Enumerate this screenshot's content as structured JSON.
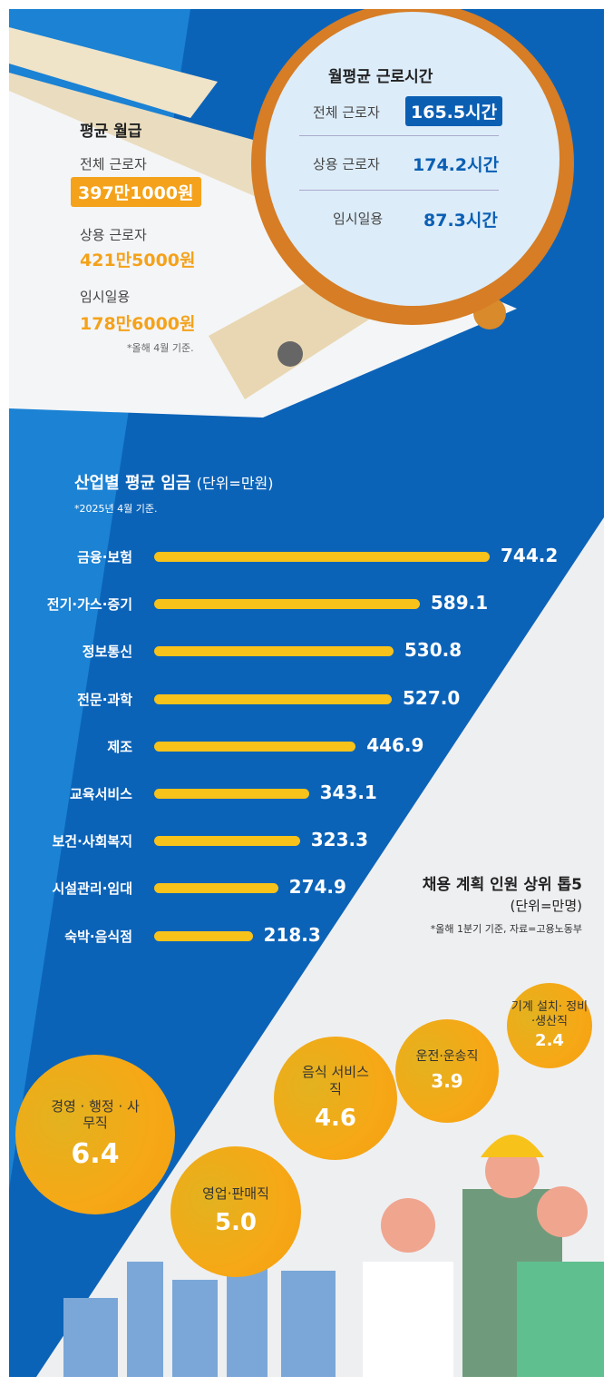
{
  "salary": {
    "title": "평균 월급",
    "items": [
      {
        "label": "전체 근로자",
        "value": "397만1000원"
      },
      {
        "label": "상용 근로자",
        "value": "421만5000원"
      },
      {
        "label": "임시일용",
        "value": "178만6000원"
      }
    ],
    "note": "*올해 4월 기준."
  },
  "hours": {
    "title": "월평균 근로시간",
    "items": [
      {
        "label": "전체 근로자",
        "value": "165.5시간"
      },
      {
        "label": "상용 근로자",
        "value": "174.2시간"
      },
      {
        "label": "임시일용",
        "value": "87.3시간"
      }
    ]
  },
  "chart_data": {
    "type": "bar",
    "orientation": "horizontal",
    "title": "산업별 평균 임금",
    "unit": "(단위=만원)",
    "note": "*2025년 4월 기준.",
    "categories": [
      "금융·보험",
      "전기·가스·증기",
      "정보통신",
      "전문·과학",
      "제조",
      "교육서비스",
      "보건·사회복지",
      "시설관리·임대",
      "숙박·음식점"
    ],
    "values": [
      744.2,
      589.1,
      530.8,
      527.0,
      446.9,
      343.1,
      323.3,
      274.9,
      218.3
    ],
    "value_labels": [
      "744.2",
      "589.1",
      "530.8",
      "527.0",
      "446.9",
      "343.1",
      "323.3",
      "274.9",
      "218.3"
    ],
    "xlim": [
      0,
      744.2
    ],
    "color": "#f7c21a"
  },
  "hiring": {
    "title": "채용 계획 인원 상위 톱5",
    "unit": "(단위=만명)",
    "note": "*올해 1분기 기준, 자료=고용노동부",
    "items": [
      {
        "label": "경영 · 행정 · 사무직",
        "value": "6.4"
      },
      {
        "label": "영업·판매직",
        "value": "5.0"
      },
      {
        "label": "음식 서비스직",
        "value": "4.6"
      },
      {
        "label": "운전·운송직",
        "value": "3.9"
      },
      {
        "label": "기계 설치· 정비·생산직",
        "value": "2.4"
      }
    ]
  }
}
